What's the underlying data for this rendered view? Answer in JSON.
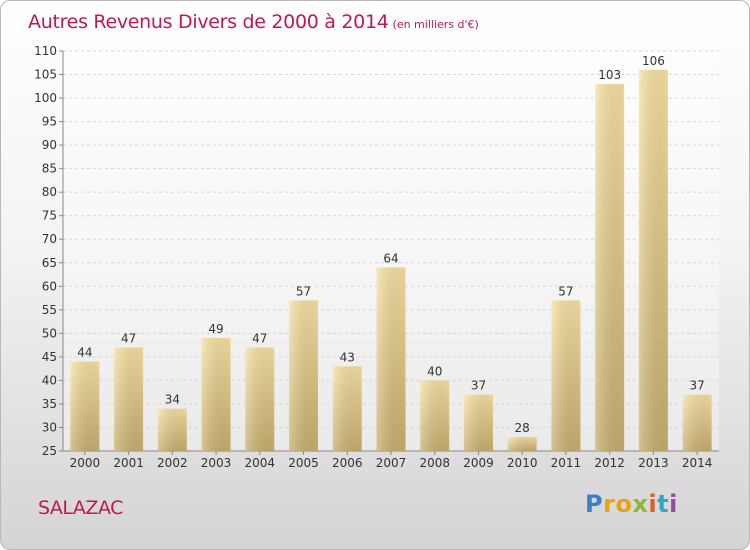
{
  "chart_data": {
    "type": "bar",
    "title": "Autres Revenus Divers de 2000 à 2014",
    "subtitle": "(en milliers d'€)",
    "categories": [
      "2000",
      "2001",
      "2002",
      "2003",
      "2004",
      "2005",
      "2006",
      "2007",
      "2008",
      "2009",
      "2010",
      "2011",
      "2012",
      "2013",
      "2014"
    ],
    "values": [
      44,
      47,
      34,
      49,
      47,
      57,
      43,
      64,
      40,
      37,
      28,
      57,
      103,
      106,
      37
    ],
    "ylim": [
      25,
      110
    ],
    "yticks": [
      25,
      30,
      35,
      40,
      45,
      50,
      55,
      60,
      65,
      70,
      75,
      80,
      85,
      90,
      95,
      100,
      105,
      110
    ],
    "grid": true,
    "data_labels": true
  },
  "footer": {
    "location": "SALAZAC",
    "logo_text": "Proxiti"
  },
  "colors": {
    "title": "#c2184f",
    "bar_light": "#f7e1a2",
    "bar_dark": "#c7ae6c",
    "grid": "#d6d6d6"
  }
}
